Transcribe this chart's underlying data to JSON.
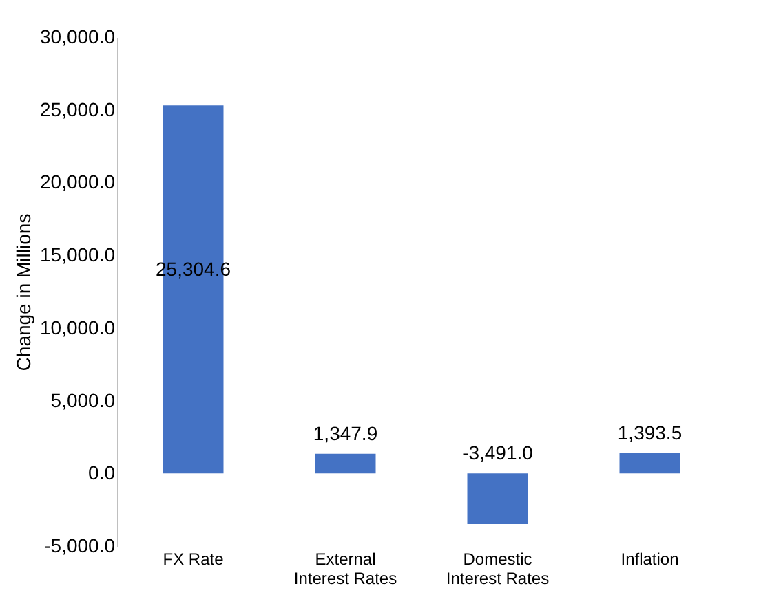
{
  "chart_data": {
    "type": "bar",
    "ylabel": "Change in Millions",
    "categories": [
      "FX Rate",
      "External\nInterest Rates",
      "Domestic\nInterest Rates",
      "Inflation"
    ],
    "values": [
      25304.6,
      1347.9,
      -3491.0,
      1393.5
    ],
    "color": "#4472c4",
    "ylim": [
      -5000,
      30000
    ],
    "yticks": [
      {
        "value": -5000,
        "label": "-5,000.0"
      },
      {
        "value": 0,
        "label": "0.0"
      },
      {
        "value": 5000,
        "label": "5,000.0"
      },
      {
        "value": 10000,
        "label": "10,000.0"
      },
      {
        "value": 15000,
        "label": "15,000.0"
      },
      {
        "value": 20000,
        "label": "20,000.0"
      },
      {
        "value": 25000,
        "label": "25,000.0"
      },
      {
        "value": 30000,
        "label": "30,000.0"
      }
    ],
    "value_labels": [
      "25,304.6",
      "1,347.9",
      "-3,491.0",
      "1,393.5"
    ],
    "grid": false
  }
}
